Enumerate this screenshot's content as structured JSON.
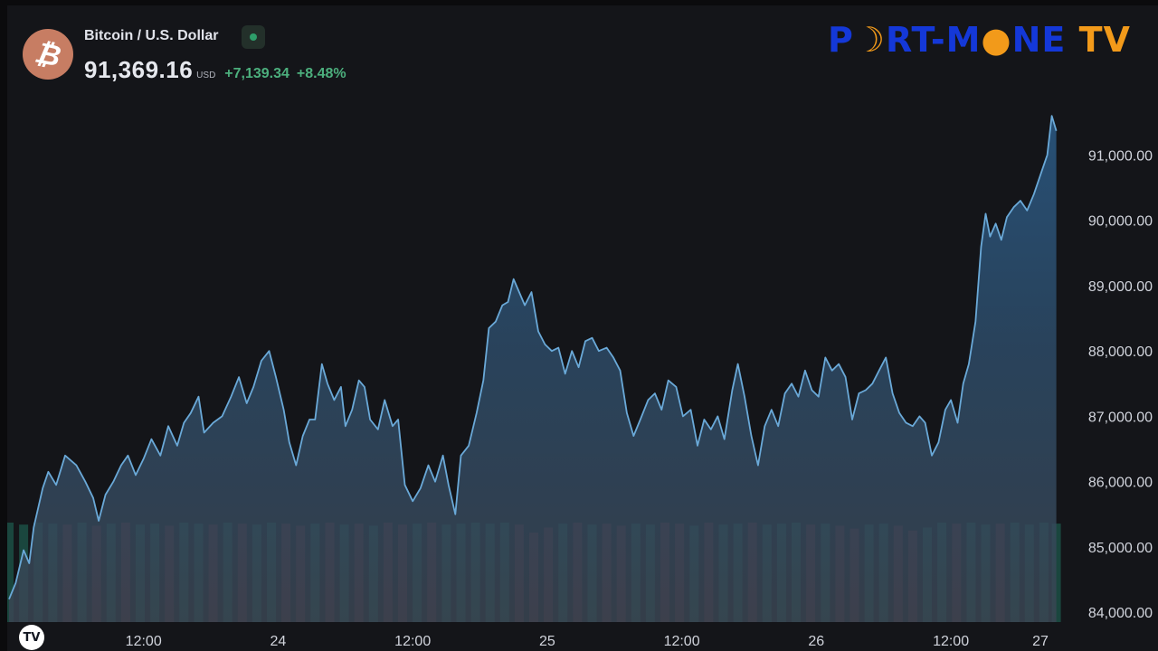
{
  "header": {
    "symbol_name": "Bitcoin / U.S. Dollar",
    "coin_glyph": "₿",
    "price": "91,369.16",
    "currency": "USD",
    "change_abs": "+7,139.34",
    "change_pct": "+8.48%",
    "status": "market-open"
  },
  "logo": {
    "part1": "P",
    "part2": "RT-M",
    "part3": "NE",
    "part4": "TV"
  },
  "badge": {
    "label": "TV"
  },
  "colors": {
    "line": "#6aa9d8",
    "up_volume": "#1f6f5c",
    "down_volume": "#7a2f3a",
    "change_positive": "#4caf7d",
    "coin": "#c77d63",
    "logo_blue": "#1438d8",
    "logo_orange": "#f29a1a"
  },
  "chart_data": {
    "type": "area",
    "ylim": [
      83850,
      91850
    ],
    "y_ticks": [
      {
        "value": 84000,
        "label": "84,000.00"
      },
      {
        "value": 85000,
        "label": "85,000.00"
      },
      {
        "value": 86000,
        "label": "86,000.00"
      },
      {
        "value": 87000,
        "label": "87,000.00"
      },
      {
        "value": 88000,
        "label": "88,000.00"
      },
      {
        "value": 89000,
        "label": "89,000.00"
      },
      {
        "value": 90000,
        "label": "90,000.00"
      },
      {
        "value": 91000,
        "label": "91,000.00"
      }
    ],
    "x_range_hours": [
      0,
      94
    ],
    "x_ticks": [
      {
        "hour": 12,
        "label": "12:00"
      },
      {
        "hour": 24,
        "label": "24"
      },
      {
        "hour": 36,
        "label": "12:00"
      },
      {
        "hour": 48,
        "label": "25"
      },
      {
        "hour": 60,
        "label": "12:00"
      },
      {
        "hour": 72,
        "label": "26"
      },
      {
        "hour": 84,
        "label": "12:00"
      },
      {
        "hour": 96,
        "label": "27"
      }
    ],
    "series": [
      {
        "values": [
          [
            0.0,
            84200
          ],
          [
            0.6,
            84450
          ],
          [
            1.3,
            84950
          ],
          [
            1.8,
            84750
          ],
          [
            2.2,
            85300
          ],
          [
            3.0,
            85900
          ],
          [
            3.5,
            86150
          ],
          [
            4.2,
            85950
          ],
          [
            5.0,
            86400
          ],
          [
            6.0,
            86250
          ],
          [
            6.8,
            86000
          ],
          [
            7.5,
            85750
          ],
          [
            8.0,
            85400
          ],
          [
            8.6,
            85800
          ],
          [
            9.3,
            86000
          ],
          [
            10.0,
            86250
          ],
          [
            10.6,
            86400
          ],
          [
            11.3,
            86100
          ],
          [
            12.0,
            86350
          ],
          [
            12.7,
            86650
          ],
          [
            13.5,
            86400
          ],
          [
            14.2,
            86850
          ],
          [
            15.0,
            86550
          ],
          [
            15.6,
            86900
          ],
          [
            16.2,
            87050
          ],
          [
            16.9,
            87300
          ],
          [
            17.4,
            86750
          ],
          [
            18.2,
            86900
          ],
          [
            19.0,
            87000
          ],
          [
            19.8,
            87300
          ],
          [
            20.5,
            87600
          ],
          [
            21.2,
            87200
          ],
          [
            21.8,
            87450
          ],
          [
            22.5,
            87850
          ],
          [
            23.2,
            88000
          ],
          [
            23.8,
            87600
          ],
          [
            24.5,
            87100
          ],
          [
            25.0,
            86600
          ],
          [
            25.6,
            86250
          ],
          [
            26.2,
            86700
          ],
          [
            26.8,
            86950
          ],
          [
            27.3,
            86950
          ],
          [
            27.9,
            87800
          ],
          [
            28.4,
            87500
          ],
          [
            29.0,
            87250
          ],
          [
            29.6,
            87450
          ],
          [
            30.0,
            86850
          ],
          [
            30.6,
            87100
          ],
          [
            31.2,
            87550
          ],
          [
            31.7,
            87450
          ],
          [
            32.2,
            86950
          ],
          [
            32.9,
            86800
          ],
          [
            33.5,
            87250
          ],
          [
            34.2,
            86850
          ],
          [
            34.7,
            86950
          ],
          [
            35.3,
            85950
          ],
          [
            36.0,
            85700
          ],
          [
            36.7,
            85900
          ],
          [
            37.4,
            86250
          ],
          [
            38.0,
            86000
          ],
          [
            38.7,
            86400
          ],
          [
            39.2,
            85950
          ],
          [
            39.8,
            85500
          ],
          [
            40.3,
            86400
          ],
          [
            41.0,
            86550
          ],
          [
            41.7,
            87050
          ],
          [
            42.3,
            87550
          ],
          [
            42.8,
            88350
          ],
          [
            43.4,
            88450
          ],
          [
            44.0,
            88700
          ],
          [
            44.5,
            88750
          ],
          [
            45.0,
            89100
          ],
          [
            45.5,
            88900
          ],
          [
            46.0,
            88700
          ],
          [
            46.6,
            88900
          ],
          [
            47.2,
            88300
          ],
          [
            47.8,
            88100
          ],
          [
            48.4,
            88000
          ],
          [
            49.0,
            88050
          ],
          [
            49.6,
            87650
          ],
          [
            50.2,
            88000
          ],
          [
            50.8,
            87750
          ],
          [
            51.4,
            88150
          ],
          [
            52.0,
            88200
          ],
          [
            52.6,
            88000
          ],
          [
            53.3,
            88050
          ],
          [
            53.9,
            87900
          ],
          [
            54.5,
            87700
          ],
          [
            55.1,
            87050
          ],
          [
            55.7,
            86700
          ],
          [
            56.3,
            86950
          ],
          [
            57.0,
            87250
          ],
          [
            57.6,
            87350
          ],
          [
            58.2,
            87100
          ],
          [
            58.8,
            87550
          ],
          [
            59.5,
            87450
          ],
          [
            60.1,
            87000
          ],
          [
            60.8,
            87100
          ],
          [
            61.4,
            86550
          ],
          [
            62.0,
            86950
          ],
          [
            62.6,
            86800
          ],
          [
            63.2,
            87000
          ],
          [
            63.8,
            86650
          ],
          [
            64.5,
            87400
          ],
          [
            65.0,
            87800
          ],
          [
            65.6,
            87300
          ],
          [
            66.2,
            86700
          ],
          [
            66.8,
            86250
          ],
          [
            67.4,
            86850
          ],
          [
            68.0,
            87100
          ],
          [
            68.6,
            86850
          ],
          [
            69.2,
            87350
          ],
          [
            69.8,
            87500
          ],
          [
            70.4,
            87300
          ],
          [
            71.0,
            87700
          ],
          [
            71.6,
            87400
          ],
          [
            72.2,
            87300
          ],
          [
            72.8,
            87900
          ],
          [
            73.4,
            87700
          ],
          [
            74.0,
            87800
          ],
          [
            74.6,
            87600
          ],
          [
            75.2,
            86950
          ],
          [
            75.8,
            87350
          ],
          [
            76.4,
            87400
          ],
          [
            77.0,
            87500
          ],
          [
            77.6,
            87700
          ],
          [
            78.2,
            87900
          ],
          [
            78.8,
            87350
          ],
          [
            79.4,
            87050
          ],
          [
            80.0,
            86900
          ],
          [
            80.6,
            86850
          ],
          [
            81.2,
            87000
          ],
          [
            81.7,
            86900
          ],
          [
            82.3,
            86400
          ],
          [
            82.9,
            86600
          ],
          [
            83.5,
            87100
          ],
          [
            84.0,
            87250
          ],
          [
            84.6,
            86900
          ],
          [
            85.1,
            87500
          ],
          [
            85.6,
            87800
          ],
          [
            86.2,
            88450
          ],
          [
            86.7,
            89600
          ],
          [
            87.1,
            90100
          ],
          [
            87.5,
            89750
          ],
          [
            88.0,
            89950
          ],
          [
            88.5,
            89700
          ],
          [
            89.0,
            90050
          ],
          [
            89.6,
            90200
          ],
          [
            90.2,
            90300
          ],
          [
            90.8,
            90150
          ],
          [
            91.4,
            90400
          ],
          [
            92.0,
            90700
          ],
          [
            92.6,
            91000
          ],
          [
            93.0,
            91600
          ],
          [
            93.4,
            91369
          ]
        ]
      }
    ],
    "volume_range": [
      0,
      100
    ],
    "volume": [
      [
        0.0,
        100,
        "up"
      ],
      [
        1.3,
        98,
        "up"
      ],
      [
        2.6,
        100,
        "up"
      ],
      [
        3.9,
        99,
        "up"
      ],
      [
        5.2,
        98,
        "down"
      ],
      [
        6.5,
        100,
        "up"
      ],
      [
        7.8,
        97,
        "down"
      ],
      [
        9.1,
        99,
        "up"
      ],
      [
        10.4,
        100,
        "down"
      ],
      [
        11.7,
        98,
        "up"
      ],
      [
        13.0,
        99,
        "up"
      ],
      [
        14.3,
        97,
        "down"
      ],
      [
        15.6,
        100,
        "up"
      ],
      [
        16.9,
        99,
        "up"
      ],
      [
        18.2,
        98,
        "down"
      ],
      [
        19.5,
        100,
        "up"
      ],
      [
        20.8,
        99,
        "down"
      ],
      [
        22.1,
        98,
        "up"
      ],
      [
        23.4,
        100,
        "up"
      ],
      [
        24.7,
        99,
        "down"
      ],
      [
        26.0,
        97,
        "down"
      ],
      [
        27.3,
        99,
        "up"
      ],
      [
        28.6,
        100,
        "down"
      ],
      [
        29.9,
        98,
        "up"
      ],
      [
        31.2,
        99,
        "down"
      ],
      [
        32.5,
        97,
        "up"
      ],
      [
        33.8,
        100,
        "down"
      ],
      [
        35.1,
        98,
        "down"
      ],
      [
        36.4,
        99,
        "up"
      ],
      [
        37.7,
        100,
        "down"
      ],
      [
        39.0,
        98,
        "up"
      ],
      [
        40.3,
        99,
        "up"
      ],
      [
        41.6,
        100,
        "up"
      ],
      [
        42.9,
        99,
        "up"
      ],
      [
        44.2,
        100,
        "up"
      ],
      [
        45.5,
        98,
        "down"
      ],
      [
        46.8,
        90,
        "down"
      ],
      [
        48.1,
        95,
        "down"
      ],
      [
        49.4,
        99,
        "up"
      ],
      [
        50.7,
        100,
        "down"
      ],
      [
        52.0,
        98,
        "up"
      ],
      [
        53.3,
        99,
        "down"
      ],
      [
        54.6,
        97,
        "down"
      ],
      [
        55.9,
        99,
        "up"
      ],
      [
        57.2,
        98,
        "up"
      ],
      [
        58.5,
        100,
        "down"
      ],
      [
        59.8,
        99,
        "down"
      ],
      [
        61.1,
        97,
        "up"
      ],
      [
        62.4,
        100,
        "down"
      ],
      [
        63.7,
        98,
        "up"
      ],
      [
        65.0,
        99,
        "up"
      ],
      [
        66.3,
        100,
        "down"
      ],
      [
        67.6,
        98,
        "up"
      ],
      [
        68.9,
        99,
        "up"
      ],
      [
        70.2,
        100,
        "up"
      ],
      [
        71.5,
        98,
        "down"
      ],
      [
        72.8,
        99,
        "up"
      ],
      [
        74.1,
        97,
        "down"
      ],
      [
        75.4,
        94,
        "down"
      ],
      [
        76.7,
        98,
        "up"
      ],
      [
        78.0,
        99,
        "up"
      ],
      [
        79.3,
        97,
        "down"
      ],
      [
        80.6,
        92,
        "down"
      ],
      [
        81.9,
        95,
        "up"
      ],
      [
        83.2,
        100,
        "up"
      ],
      [
        84.5,
        99,
        "down"
      ],
      [
        85.8,
        100,
        "up"
      ],
      [
        87.1,
        98,
        "up"
      ],
      [
        88.4,
        99,
        "down"
      ],
      [
        89.7,
        100,
        "up"
      ],
      [
        91.0,
        98,
        "up"
      ],
      [
        92.3,
        100,
        "up"
      ],
      [
        93.4,
        99,
        "up"
      ]
    ],
    "grid": false
  }
}
